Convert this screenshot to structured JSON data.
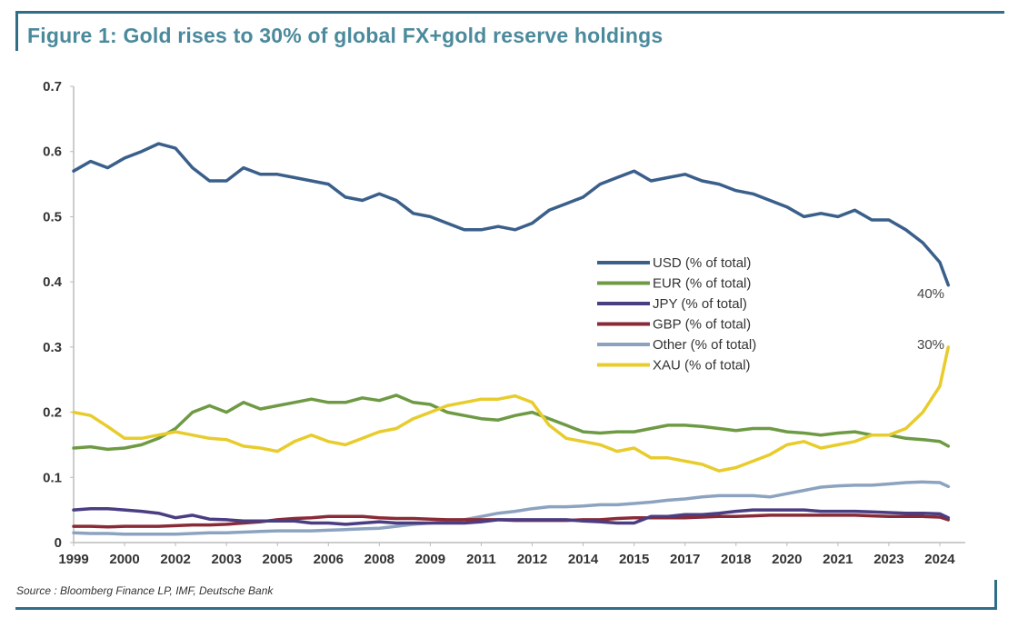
{
  "figure": {
    "title": "Figure 1: Gold rises to 30% of global FX+gold reserve holdings",
    "source": "Source : Bloomberg Finance LP, IMF, Deutsche Bank"
  },
  "chart_data": {
    "type": "line",
    "title": "Figure 1: Gold rises to 30% of global FX+gold reserve holdings",
    "xlabel": "",
    "ylabel": "",
    "ylim": [
      0,
      0.7
    ],
    "yticks": [
      "0",
      "0.1",
      "0.2",
      "0.3",
      "0.4",
      "0.5",
      "0.6",
      "0.7"
    ],
    "xlim": [
      1999.0,
      2025.25
    ],
    "xtick_labels": [
      "1999",
      "2000",
      "2002",
      "2003",
      "2005",
      "2006",
      "2008",
      "2009",
      "2011",
      "2012",
      "2014",
      "2015",
      "2017",
      "2018",
      "2020",
      "2021",
      "2023",
      "2024"
    ],
    "xtick_values": [
      1999.0,
      2000.5,
      2002.0,
      2003.5,
      2005.0,
      2006.5,
      2008.0,
      2009.5,
      2011.0,
      2012.5,
      2014.0,
      2015.5,
      2017.0,
      2018.5,
      2020.0,
      2021.5,
      2023.0,
      2024.5
    ],
    "grid": false,
    "legend_position": "center-right",
    "annotations": [
      {
        "text": "40%",
        "x": 2024.4,
        "y": 0.37
      },
      {
        "text": "30%",
        "x": 2024.4,
        "y": 0.305
      }
    ],
    "x": [
      1999.0,
      1999.5,
      2000.0,
      2000.5,
      2001.0,
      2001.5,
      2002.0,
      2002.5,
      2003.0,
      2003.5,
      2004.0,
      2004.5,
      2005.0,
      2005.5,
      2006.0,
      2006.5,
      2007.0,
      2007.5,
      2008.0,
      2008.5,
      2009.0,
      2009.5,
      2010.0,
      2010.5,
      2011.0,
      2011.5,
      2012.0,
      2012.5,
      2013.0,
      2013.5,
      2014.0,
      2014.5,
      2015.0,
      2015.5,
      2016.0,
      2016.5,
      2017.0,
      2017.5,
      2018.0,
      2018.5,
      2019.0,
      2019.5,
      2020.0,
      2020.5,
      2021.0,
      2021.5,
      2022.0,
      2022.5,
      2023.0,
      2023.5,
      2024.0,
      2024.5,
      2024.75
    ],
    "series": [
      {
        "name": "USD (% of total)",
        "color": "#3a5f8a",
        "values": [
          0.57,
          0.585,
          0.575,
          0.59,
          0.6,
          0.612,
          0.605,
          0.575,
          0.555,
          0.555,
          0.575,
          0.565,
          0.565,
          0.56,
          0.555,
          0.55,
          0.53,
          0.525,
          0.535,
          0.525,
          0.505,
          0.5,
          0.49,
          0.48,
          0.48,
          0.485,
          0.48,
          0.49,
          0.51,
          0.52,
          0.53,
          0.55,
          0.56,
          0.57,
          0.555,
          0.56,
          0.565,
          0.555,
          0.55,
          0.54,
          0.535,
          0.525,
          0.515,
          0.5,
          0.505,
          0.5,
          0.51,
          0.495,
          0.495,
          0.48,
          0.46,
          0.43,
          0.395
        ]
      },
      {
        "name": "EUR (% of total)",
        "color": "#6e9a44",
        "values": [
          0.145,
          0.147,
          0.143,
          0.145,
          0.15,
          0.16,
          0.175,
          0.2,
          0.21,
          0.2,
          0.215,
          0.205,
          0.21,
          0.215,
          0.22,
          0.215,
          0.215,
          0.222,
          0.218,
          0.226,
          0.215,
          0.212,
          0.2,
          0.195,
          0.19,
          0.188,
          0.195,
          0.2,
          0.19,
          0.18,
          0.17,
          0.168,
          0.17,
          0.17,
          0.175,
          0.18,
          0.18,
          0.178,
          0.175,
          0.172,
          0.175,
          0.175,
          0.17,
          0.168,
          0.165,
          0.168,
          0.17,
          0.165,
          0.165,
          0.16,
          0.158,
          0.155,
          0.148
        ]
      },
      {
        "name": "JPY (% of total)",
        "color": "#4b3d82",
        "values": [
          0.05,
          0.052,
          0.052,
          0.05,
          0.048,
          0.045,
          0.038,
          0.042,
          0.036,
          0.035,
          0.033,
          0.033,
          0.033,
          0.033,
          0.03,
          0.03,
          0.028,
          0.03,
          0.032,
          0.03,
          0.03,
          0.03,
          0.03,
          0.03,
          0.032,
          0.035,
          0.035,
          0.035,
          0.035,
          0.035,
          0.033,
          0.032,
          0.03,
          0.03,
          0.04,
          0.04,
          0.043,
          0.043,
          0.045,
          0.048,
          0.05,
          0.05,
          0.05,
          0.05,
          0.048,
          0.048,
          0.048,
          0.047,
          0.046,
          0.045,
          0.045,
          0.044,
          0.038
        ]
      },
      {
        "name": "GBP (% of total)",
        "color": "#8a2a36",
        "values": [
          0.025,
          0.025,
          0.024,
          0.025,
          0.025,
          0.025,
          0.026,
          0.027,
          0.027,
          0.028,
          0.03,
          0.032,
          0.035,
          0.037,
          0.038,
          0.04,
          0.04,
          0.04,
          0.038,
          0.037,
          0.037,
          0.036,
          0.035,
          0.035,
          0.035,
          0.035,
          0.034,
          0.034,
          0.034,
          0.034,
          0.035,
          0.035,
          0.037,
          0.038,
          0.038,
          0.038,
          0.038,
          0.039,
          0.04,
          0.04,
          0.041,
          0.042,
          0.042,
          0.042,
          0.042,
          0.042,
          0.042,
          0.041,
          0.04,
          0.04,
          0.04,
          0.039,
          0.035
        ]
      },
      {
        "name": "Other (% of total)",
        "color": "#8ca3c0",
        "values": [
          0.015,
          0.014,
          0.014,
          0.013,
          0.013,
          0.013,
          0.013,
          0.014,
          0.015,
          0.015,
          0.016,
          0.017,
          0.018,
          0.018,
          0.018,
          0.019,
          0.02,
          0.021,
          0.022,
          0.025,
          0.028,
          0.03,
          0.032,
          0.035,
          0.04,
          0.045,
          0.048,
          0.052,
          0.055,
          0.055,
          0.056,
          0.058,
          0.058,
          0.06,
          0.062,
          0.065,
          0.067,
          0.07,
          0.072,
          0.072,
          0.072,
          0.07,
          0.075,
          0.08,
          0.085,
          0.087,
          0.088,
          0.088,
          0.09,
          0.092,
          0.093,
          0.092,
          0.086
        ]
      },
      {
        "name": "XAU (% of total)",
        "color": "#e8cc2c",
        "values": [
          0.2,
          0.195,
          0.178,
          0.16,
          0.16,
          0.165,
          0.17,
          0.165,
          0.16,
          0.158,
          0.148,
          0.145,
          0.14,
          0.155,
          0.165,
          0.155,
          0.15,
          0.16,
          0.17,
          0.175,
          0.19,
          0.2,
          0.21,
          0.215,
          0.22,
          0.22,
          0.225,
          0.215,
          0.18,
          0.16,
          0.155,
          0.15,
          0.14,
          0.145,
          0.13,
          0.13,
          0.125,
          0.12,
          0.11,
          0.115,
          0.125,
          0.135,
          0.15,
          0.155,
          0.145,
          0.15,
          0.155,
          0.165,
          0.165,
          0.175,
          0.2,
          0.24,
          0.3
        ]
      }
    ]
  }
}
